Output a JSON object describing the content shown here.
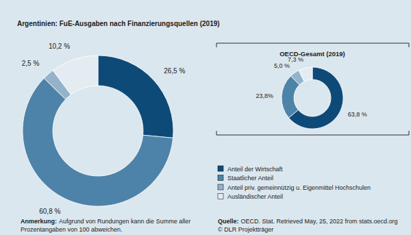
{
  "chart_data": [
    {
      "type": "pie",
      "title": "Argentinien: FuE-Ausgaben nach Finanzierungsquellen (2019)",
      "categories": [
        "Anteil der Wirtschaft",
        "Staatlicher Anteil",
        "Anteil priv. gemeinnützig u. Eigenmittel Hochschulen",
        "Ausländischer Anteil"
      ],
      "values": [
        26.5,
        60.8,
        2.5,
        10.2
      ],
      "value_labels": [
        "26,5 %",
        "60,8 %",
        "2,5 %",
        "10,2 %"
      ],
      "colors": [
        "#0e4a78",
        "#4e83a9",
        "#93b3cb",
        "#e4ecf2"
      ],
      "data_labels": true,
      "legend": "bottom-right"
    },
    {
      "type": "pie",
      "title": "OECD-Gesamt (2019)",
      "values": [
        63.8,
        23.8,
        5.0,
        7.3
      ],
      "value_labels": [
        "63,8 %",
        "23,8%",
        "5,0 %",
        "7,3 %"
      ],
      "colors": [
        "#0e4a78",
        "#4e83a9",
        "#93b3cb",
        "#e4ecf2"
      ],
      "data_labels": true
    }
  ],
  "note": {
    "label": "Anmerkung:",
    "lines": [
      "Aufgrund von Rundungen kann die Summe aller",
      "Prozentangaben von 100 abweichen."
    ]
  },
  "source": {
    "label": "Quelle:",
    "lines": [
      "OECD. Stat. Retrieved May, 25, 2022 from stats.oecd.org",
      "© DLR Projektträger"
    ]
  }
}
